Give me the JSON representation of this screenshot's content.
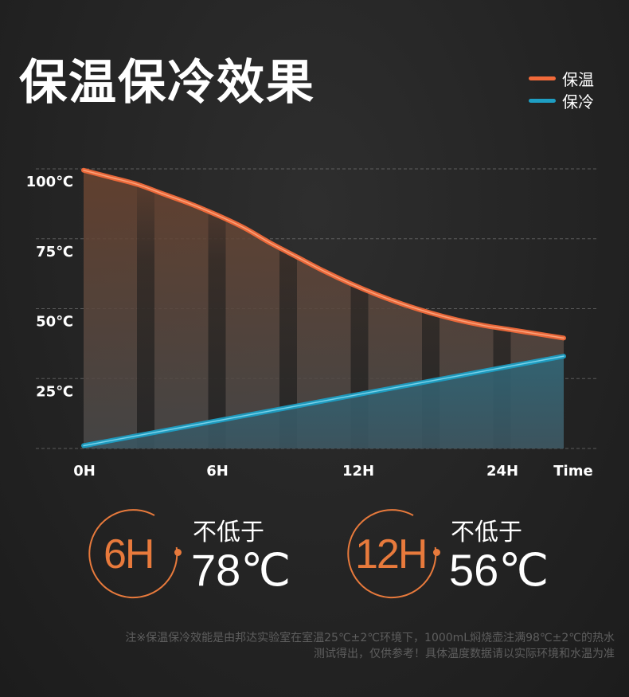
{
  "title": "保温保冷效果",
  "legend": [
    {
      "label": "保温",
      "color": "#f26a3a"
    },
    {
      "label": "保冷",
      "color": "#1e9ec3"
    }
  ],
  "chart_data": {
    "type": "line",
    "x_tick_labels": [
      "0H",
      "6H",
      "12H",
      "24H",
      "Time"
    ],
    "y_tick_labels": [
      "100℃",
      "75℃",
      "50℃",
      "25℃"
    ],
    "ylim": [
      0,
      100
    ],
    "grid": true,
    "legend_position": "top-right",
    "series": [
      {
        "name": "保温",
        "color": "#f26a3a",
        "x": [
          0,
          1,
          2,
          3,
          4,
          5,
          6,
          7,
          8,
          9,
          10,
          11,
          12,
          13,
          14,
          15,
          16,
          17,
          18
        ],
        "y": [
          99.5,
          97,
          94.5,
          91,
          87.5,
          83.5,
          79,
          73.5,
          68.5,
          63.5,
          59,
          55,
          51.5,
          48.5,
          46,
          44,
          42.5,
          41,
          39.5
        ]
      },
      {
        "name": "保冷",
        "color": "#1e9ec3",
        "x": [
          0,
          18
        ],
        "y": [
          1,
          33
        ]
      }
    ]
  },
  "stats": [
    {
      "big": "6H",
      "caption": "不低于",
      "value": "78℃"
    },
    {
      "big": "12H",
      "caption": "不低于",
      "value": "56℃"
    }
  ],
  "footnote": [
    "注※保温保冷效能是由邦达实验室在室温25℃±2℃环境下，1000mL焖烧壶注满98℃±2℃的热水",
    "测试得出，仅供参考！具体温度数据请以实际环境和水温为准"
  ]
}
